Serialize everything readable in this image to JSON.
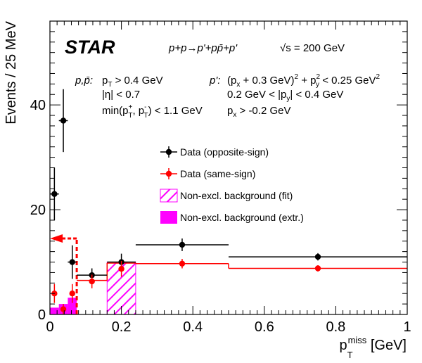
{
  "chart_data": {
    "type": "scatter",
    "experiment": "STAR",
    "process_text": "p+p→p'+pp̄+p'",
    "energy_text": "√s = 200 GeV",
    "xlabel": "p_T^miss [GeV]",
    "ylabel": "Events / 25 MeV",
    "xlim": [
      0,
      1
    ],
    "ylim": [
      0,
      56
    ],
    "x_ticks": [
      "0",
      "0.2",
      "0.4",
      "0.6",
      "0.8",
      "1"
    ],
    "y_ticks": [
      "0",
      "20",
      "40"
    ],
    "cuts_left": {
      "label": "p,p̄:",
      "lines": [
        "p_T > 0.4 GeV",
        "|η| < 0.7",
        "min(p_T^+, p_T^-) < 1.1 GeV"
      ]
    },
    "cuts_right": {
      "label": "p':",
      "lines": [
        "(p_x + 0.3 GeV)^2 + p_y^2 < 0.25 GeV^2",
        "0.2 GeV < |p_y| < 0.4 GeV",
        "p_x > -0.2 GeV"
      ]
    },
    "legend": [
      {
        "label": "Data (opposite-sign)",
        "color": "#000000",
        "kind": "marker"
      },
      {
        "label": "Data (same-sign)",
        "color": "#ff0000",
        "kind": "marker"
      },
      {
        "label": "Non-excl. background (fit)",
        "color": "#ff00ff",
        "kind": "hatched"
      },
      {
        "label": "Non-excl. background (extr.)",
        "color": "#ff00ff",
        "kind": "filled"
      }
    ],
    "series": [
      {
        "name": "Data (opposite-sign)",
        "color": "#000000",
        "points": [
          {
            "x": 0.0125,
            "y": 23,
            "xerr": 0.0125,
            "yerr": 5
          },
          {
            "x": 0.0375,
            "y": 37,
            "xerr": 0.0125,
            "yerr": 6
          },
          {
            "x": 0.0625,
            "y": 10,
            "xerr": 0.0125,
            "yerr": 3.2
          },
          {
            "x": 0.1175,
            "y": 7.5,
            "xerr": 0.0425,
            "yerr": 1.3
          },
          {
            "x": 0.2,
            "y": 10,
            "xerr": 0.04,
            "yerr": 1.6
          },
          {
            "x": 0.37,
            "y": 13.3,
            "xerr": 0.13,
            "yerr": 1.2
          },
          {
            "x": 0.75,
            "y": 11,
            "xerr": 0.25,
            "yerr": 0.7
          }
        ]
      },
      {
        "name": "Data (same-sign)",
        "color": "#ff0000",
        "points": [
          {
            "x": 0.0125,
            "y": 4,
            "xerr": 0,
            "yerr": 1.8
          },
          {
            "x": 0.0375,
            "y": 1,
            "xerr": 0,
            "yerr": 1
          },
          {
            "x": 0.0625,
            "y": 4,
            "xerr": 0,
            "yerr": 1.8
          },
          {
            "x": 0.1175,
            "y": 6.3,
            "xerr": 0,
            "yerr": 1.3
          },
          {
            "x": 0.2,
            "y": 8.7,
            "xerr": 0,
            "yerr": 1.5
          },
          {
            "x": 0.37,
            "y": 9.7,
            "xerr": 0,
            "yerr": 0.9
          },
          {
            "x": 0.75,
            "y": 8.8,
            "xerr": 0,
            "yerr": 0.6
          }
        ]
      }
    ],
    "same_sign_histogram": [
      {
        "x0": 0.075,
        "x1": 0.16,
        "y": 6.5
      },
      {
        "x0": 0.16,
        "x1": 0.24,
        "y": 9.8
      },
      {
        "x0": 0.24,
        "x1": 0.5,
        "y": 9.7
      },
      {
        "x0": 0.5,
        "x1": 1.0,
        "y": 8.8
      }
    ],
    "background_fit": [
      {
        "x0": 0.16,
        "x1": 0.24,
        "y": 10
      }
    ],
    "background_extr": [
      {
        "x0": 0.0,
        "x1": 0.025,
        "y": 1.3
      },
      {
        "x0": 0.025,
        "x1": 0.05,
        "y": 2.0
      },
      {
        "x0": 0.05,
        "x1": 0.075,
        "y": 3.2
      }
    ],
    "cut_x": 0.075,
    "cut_line_top": 14.5,
    "cut_arrow_y": 14.5
  }
}
